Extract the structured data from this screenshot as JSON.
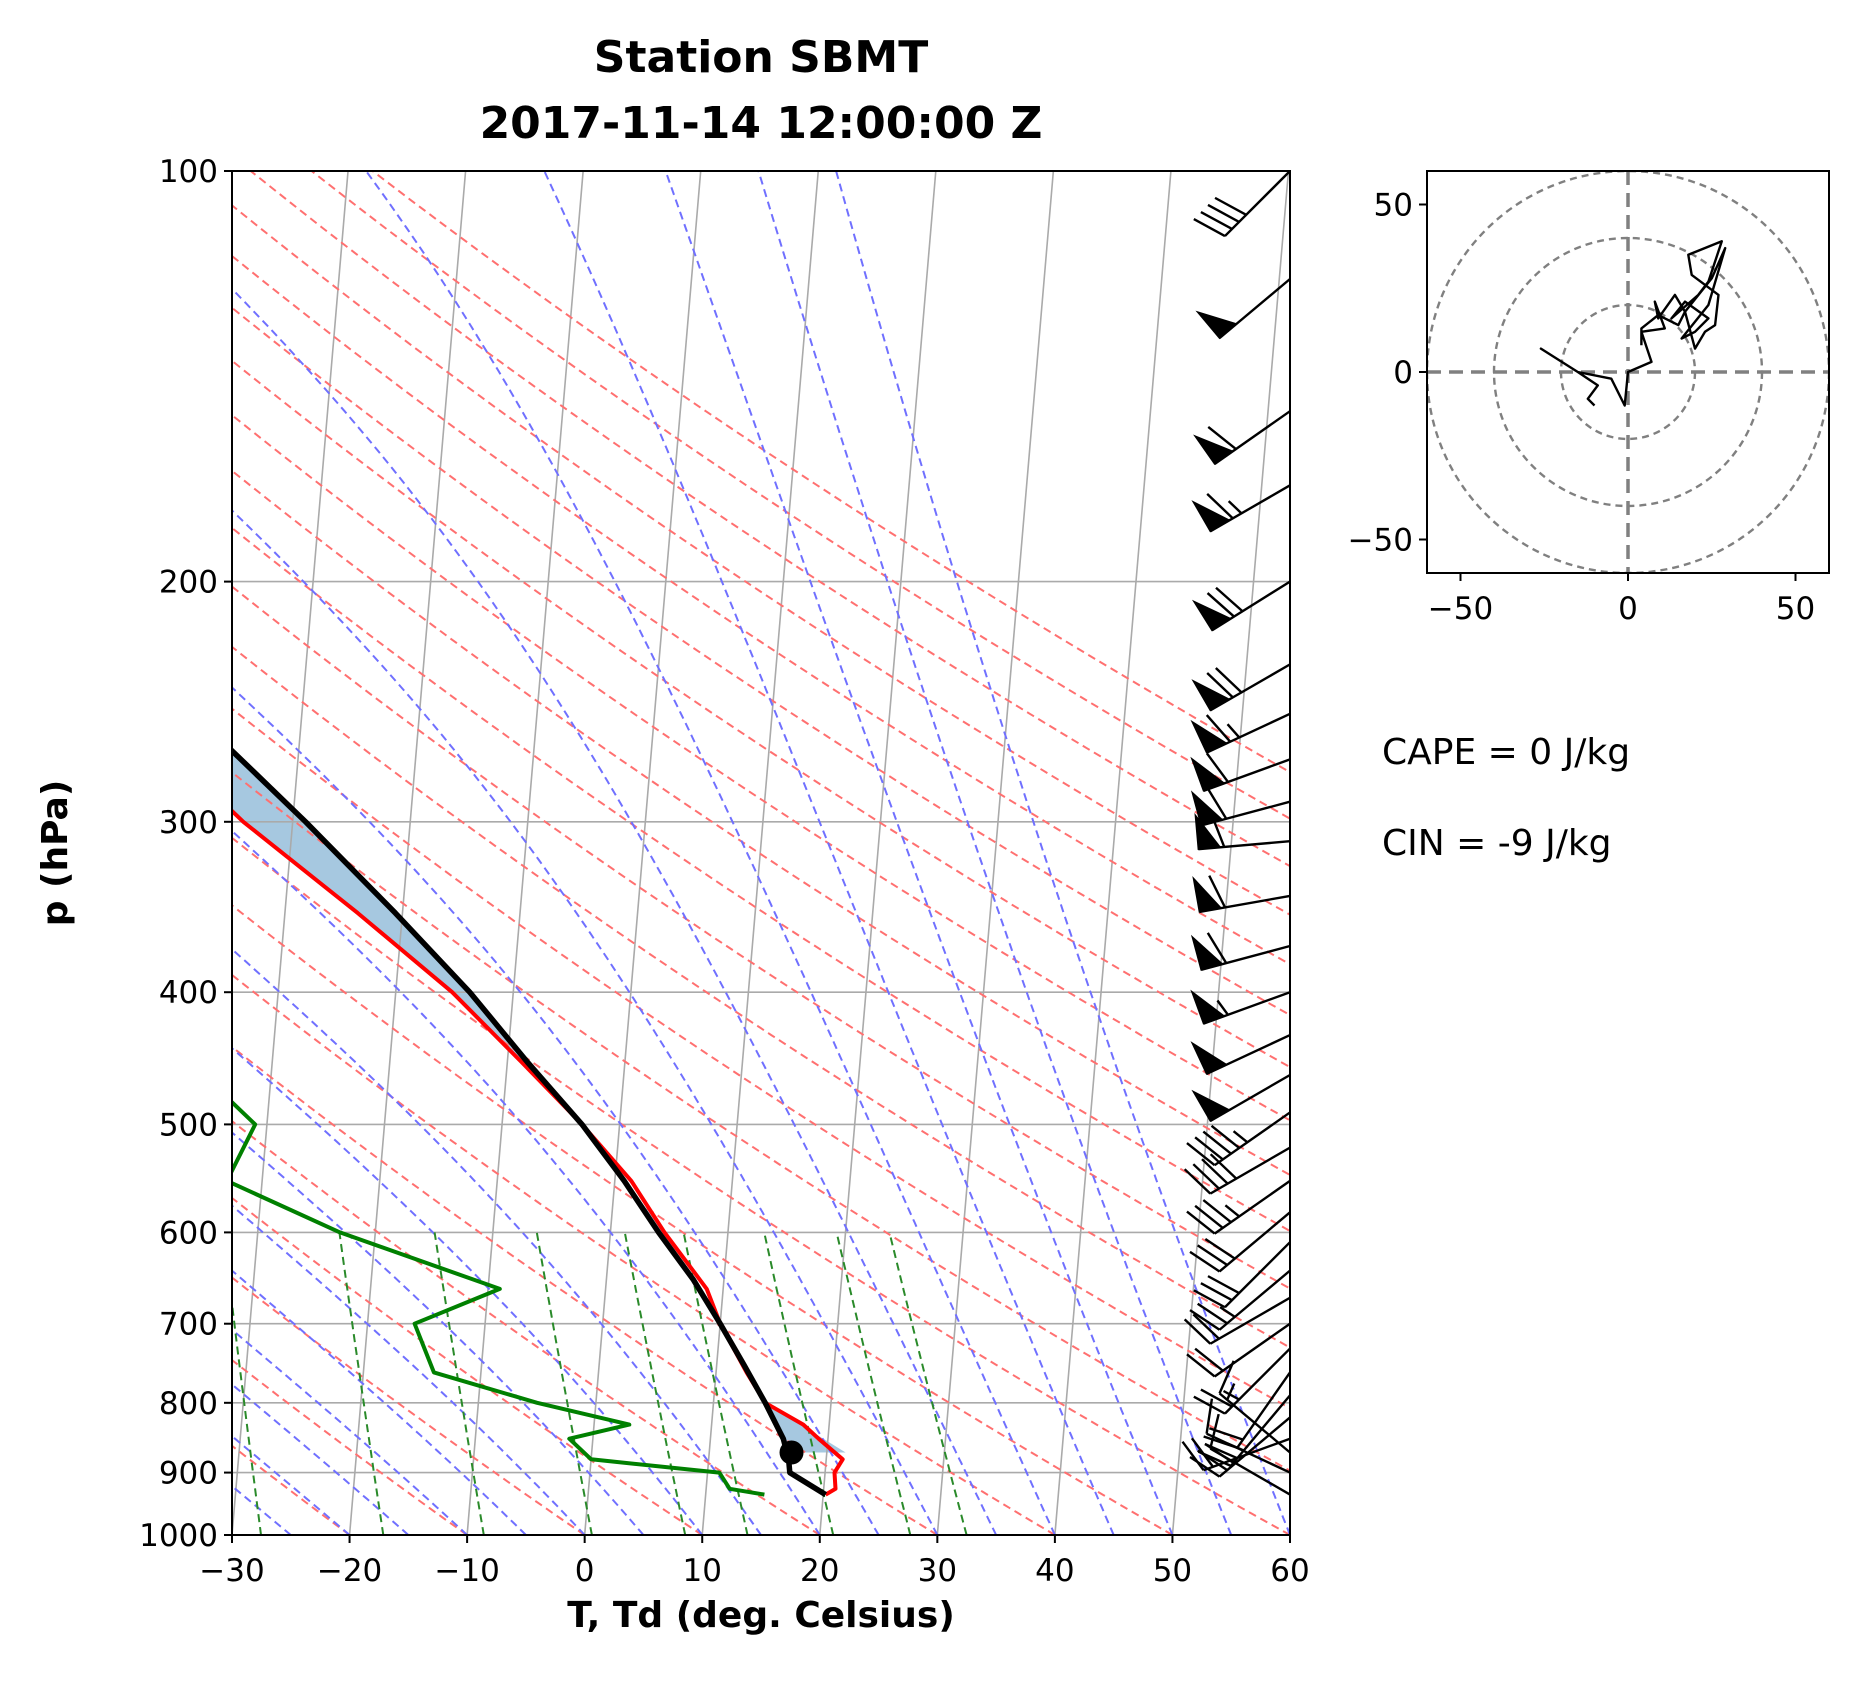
{
  "chart_data": [
    {
      "type": "skew-t log-p",
      "title": "Station SBMT",
      "subtitle": "2017-11-14 12:00:00 Z",
      "xlabel": "T, Td (deg. Celsius)",
      "ylabel": "p (hPa)",
      "xlim": [
        -30,
        60
      ],
      "ylim": [
        1000,
        100
      ],
      "y_scale": "log",
      "xticks": [
        "−30",
        "−20",
        "−10",
        "0",
        "10",
        "20",
        "30",
        "40",
        "50",
        "60"
      ],
      "yticks": [
        "100",
        "200",
        "300",
        "400",
        "500",
        "600",
        "700",
        "800",
        "900",
        "1000"
      ],
      "grid": true,
      "series": [
        {
          "kind": "temperature",
          "color": "#ff0000",
          "p": [
            934,
            925,
            900,
            880,
            850,
            830,
            800,
            760,
            700,
            660,
            600,
            550,
            500,
            450,
            400,
            350,
            300,
            270,
            250,
            230,
            210,
            195,
            180,
            165,
            150,
            140,
            130,
            120,
            110,
            100
          ],
          "t": [
            20.2,
            21.0,
            20.8,
            21.4,
            19.2,
            17.8,
            14.4,
            12.6,
            10.0,
            8.6,
            4.6,
            1.4,
            -3.2,
            -8.8,
            -15.2,
            -23.8,
            -34.2,
            -40.2,
            -44.6,
            -48.2,
            -52.2,
            -55.2,
            -56.6,
            -56.2,
            -55.4,
            -55.2,
            -58.4,
            -61.0,
            -64.6,
            -67.2
          ]
        },
        {
          "kind": "dewpoint",
          "color": "#008000",
          "p": [
            934,
            925,
            900,
            880,
            850,
            830,
            800,
            760,
            700,
            660,
            600,
            550,
            500,
            450,
            400,
            350,
            300,
            270,
            250,
            230,
            210,
            195,
            180,
            165,
            150,
            140,
            130,
            120,
            110,
            100
          ],
          "t": [
            15.0,
            12.0,
            11.0,
            0.0,
            -2.0,
            3.0,
            -5.0,
            -14.0,
            -16.0,
            -9.0,
            -23.0,
            -33.0,
            -31.0,
            -37.0,
            -37.0,
            -37.0,
            -44.0,
            -46.0,
            -49.0,
            -52.0,
            -59.0,
            -64.0,
            -68.0,
            -70.0,
            -74.0,
            -78.0,
            -80.0,
            -80.0,
            -81.0,
            -84.0
          ]
        },
        {
          "kind": "parcel profile",
          "color": "#000000",
          "p": [
            934,
            900,
            880,
            850,
            800,
            750,
            700,
            650,
            600,
            550,
            500,
            450,
            400,
            350,
            300,
            250,
            200,
            170,
            150,
            130,
            115,
            100
          ],
          "t": [
            20.2,
            17.0,
            16.8,
            16.2,
            14.4,
            12.3,
            10.0,
            7.4,
            4.1,
            0.8,
            -3.2,
            -8.3,
            -13.7,
            -20.6,
            -28.9,
            -39.2,
            -51.8,
            -60.9,
            -67.1,
            -74.7,
            -80.6,
            -87.7
          ]
        }
      ],
      "lcl": {
        "p": 870,
        "t": 17.0
      },
      "cin_shading": {
        "color": "#a6c8e0",
        "p": [
          870,
          800,
          700,
          600,
          500,
          400,
          300,
          250,
          200,
          150,
          100
        ],
        "t_env": [
          21.6,
          14.4,
          10.0,
          4.6,
          -3.2,
          -15.2,
          -34.2,
          -44.6,
          -53.4,
          -55.4,
          -67.2
        ],
        "t_parcel": [
          17.0,
          14.4,
          10.0,
          4.1,
          -3.2,
          -13.7,
          -28.9,
          -39.2,
          -51.8,
          -67.1,
          -87.7
        ]
      },
      "reference_lines": {
        "isotherm_color": "#aaaaaa",
        "dry_adiabat_color": "#ff7070",
        "moist_adiabat_color": "#7070ff",
        "mixing_ratio_color": "#2a8a2a"
      },
      "wind_barbs": {
        "color": "#000000",
        "p": [
          934,
          900,
          870,
          850,
          820,
          790,
          760,
          730,
          700,
          670,
          640,
          610,
          580,
          550,
          520,
          490,
          460,
          430,
          400,
          370,
          340,
          310,
          290,
          270,
          250,
          230,
          200,
          170,
          150,
          120,
          100
        ],
        "speed_kt": [
          8,
          12,
          15,
          20,
          28,
          24,
          22,
          26,
          20,
          18,
          25,
          30,
          32,
          35,
          40,
          45,
          48,
          50,
          55,
          60,
          62,
          58,
          60,
          62,
          65,
          68,
          70,
          65,
          60,
          50,
          40
        ],
        "direction_deg": [
          300,
          295,
          310,
          250,
          230,
          220,
          215,
          225,
          235,
          240,
          230,
          225,
          230,
          235,
          240,
          235,
          240,
          245,
          250,
          255,
          260,
          265,
          255,
          250,
          245,
          240,
          238,
          240,
          235,
          230,
          225
        ]
      }
    },
    {
      "type": "hodograph",
      "xlim": [
        -60,
        60
      ],
      "ylim": [
        -60,
        60
      ],
      "xticks": [
        "−50",
        "0",
        "50"
      ],
      "yticks": [
        "50",
        "0",
        "−50"
      ],
      "rings": [
        20,
        40,
        60
      ],
      "u": [
        -10,
        -12,
        -9,
        -15,
        -26,
        -15,
        -5,
        -1,
        0,
        7,
        4,
        11,
        8,
        9,
        14,
        17,
        20,
        23,
        26,
        27,
        19,
        18,
        28,
        24,
        21,
        13,
        17,
        24,
        20,
        16,
        24,
        29,
        25,
        17,
        15,
        9,
        4,
        4
      ],
      "v": [
        -10,
        -8,
        -4,
        0,
        7,
        0,
        -2,
        -10,
        0,
        3,
        12,
        13,
        21,
        16,
        23,
        18,
        7,
        12,
        14,
        23,
        29,
        35,
        39,
        27,
        23,
        16,
        21,
        16,
        12,
        10,
        20,
        37,
        28,
        18,
        14,
        17,
        13,
        8
      ]
    }
  ],
  "annotations": {
    "cape": "CAPE = 0 J/kg",
    "cin": "CIN = -9 J/kg"
  }
}
